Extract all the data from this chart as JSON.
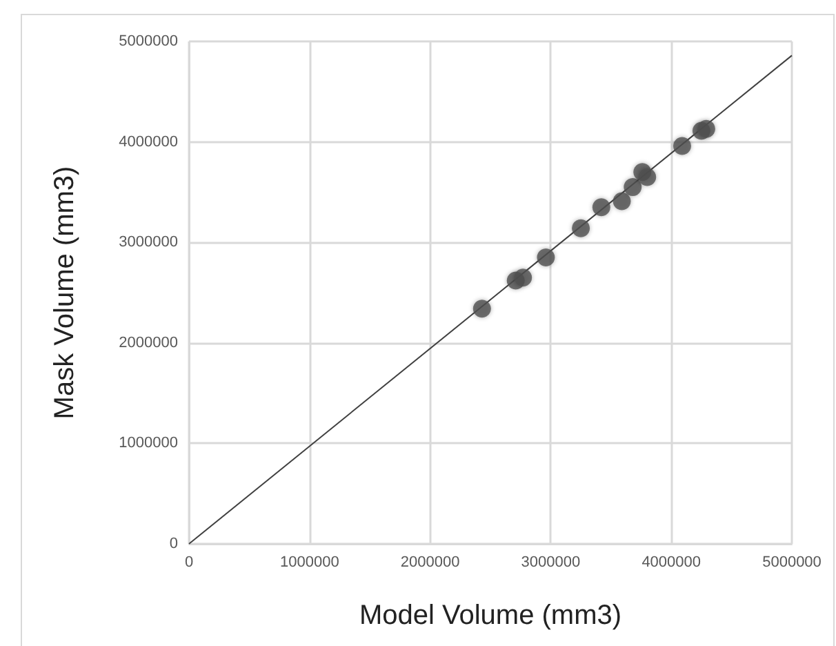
{
  "chart_data": {
    "type": "scatter",
    "xlabel": "Model Volume (mm3)",
    "ylabel": "Mask Volume (mm3)",
    "xlim": [
      0,
      5000000
    ],
    "ylim": [
      0,
      5000000
    ],
    "xticks": [
      0,
      1000000,
      2000000,
      3000000,
      4000000,
      5000000
    ],
    "yticks": [
      0,
      1000000,
      2000000,
      3000000,
      4000000,
      5000000
    ],
    "grid": true,
    "marker": "circle",
    "series": [
      {
        "color": "#505050",
        "x": [
          2430000,
          2710000,
          2770000,
          2960000,
          3250000,
          3420000,
          3590000,
          3680000,
          3760000,
          3800000,
          4090000,
          4250000,
          4290000
        ],
        "values": [
          2340000,
          2620000,
          2650000,
          2850000,
          3140000,
          3350000,
          3410000,
          3550000,
          3700000,
          3650000,
          3960000,
          4110000,
          4130000
        ]
      },
      {
        "type": "line",
        "color": "#404040",
        "marker": "none",
        "x": [
          0,
          5000000
        ],
        "values": [
          0,
          4860000
        ]
      }
    ]
  }
}
